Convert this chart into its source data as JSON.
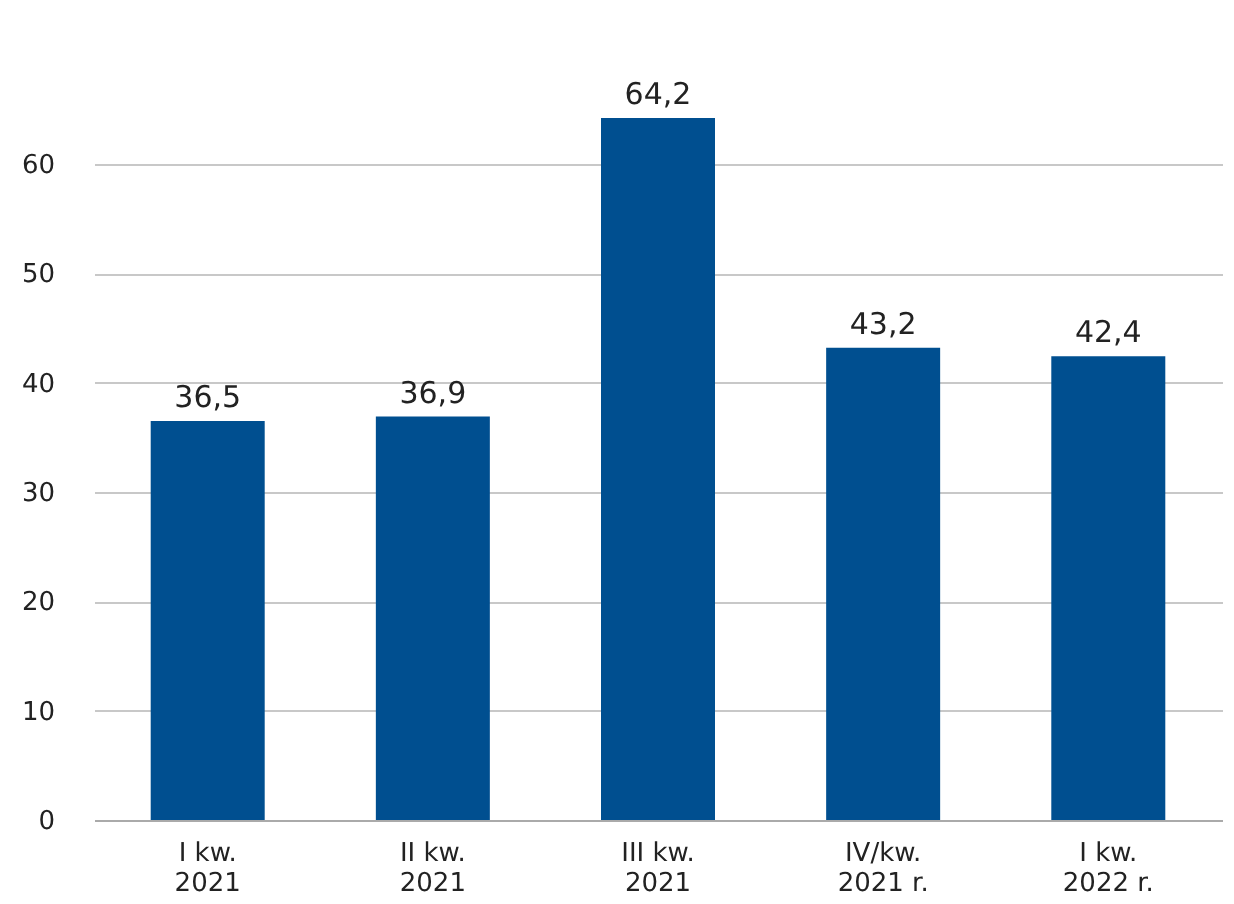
{
  "chart_data": {
    "type": "bar",
    "categories": [
      "I kw.\n2021",
      "II kw.\n2021",
      "III kw.\n2021",
      "IV/kw.\n2021 r.",
      "I kw.\n2022 r."
    ],
    "values": [
      36.5,
      36.9,
      64.2,
      43.2,
      42.4
    ],
    "value_labels": [
      "36,5",
      "36,9",
      "64,2",
      "43,2",
      "42,4"
    ],
    "color": "#004f90",
    "ylim": [
      0,
      64.2
    ],
    "yticks": [
      0,
      10,
      20,
      30,
      40,
      50,
      60
    ],
    "grid": "y"
  }
}
